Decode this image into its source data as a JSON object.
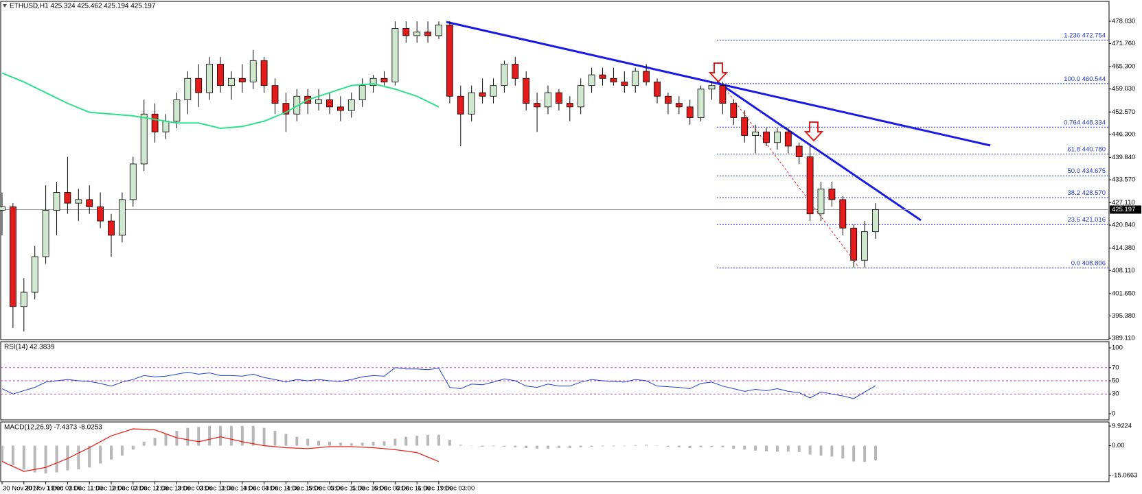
{
  "chart_data": {
    "type": "candlestick",
    "title": "ETHUSD,H1  425.324 425.462 425.194 425.197",
    "x_labels": [
      "30 Nov 2017",
      "30 Nov 19:00",
      "1 Dec 03:00",
      "1 Dec 11:00",
      "1 Dec 19:00",
      "2 Dec 03:00",
      "2 Dec 11:00",
      "2 Dec 19:00",
      "3 Dec 03:00",
      "3 Dec 11:00",
      "3 Dec 19:00",
      "4 Dec 03:00",
      "4 Dec 11:00",
      "4 Dec 19:00",
      "5 Dec 03:00",
      "5 Dec 11:00",
      "5 Dec 19:00",
      "6 Dec 03:00",
      "6 Dec 11:00",
      "6 Dec 19:00",
      "7 Dec 03:00"
    ],
    "open": [
      425,
      426,
      398,
      402,
      412,
      425,
      430,
      427,
      428,
      426,
      422,
      418,
      428,
      438,
      452,
      447,
      450,
      456,
      462,
      458,
      466,
      460,
      462,
      461,
      467,
      460,
      455,
      452,
      457,
      455,
      456,
      454,
      453,
      456,
      460,
      462,
      461,
      476,
      474,
      475,
      474,
      477,
      457,
      452,
      458,
      457,
      460,
      466,
      462,
      455,
      454,
      458,
      455,
      454,
      460,
      463,
      462,
      461,
      460,
      464,
      461,
      457,
      455,
      454,
      451,
      459,
      460,
      455,
      451,
      446,
      447,
      444,
      447,
      443,
      440,
      424,
      431,
      428,
      420,
      411,
      419
    ],
    "high": [
      430,
      427,
      406,
      415,
      432,
      433,
      440,
      431,
      432,
      430,
      424,
      430,
      440,
      456,
      455,
      452,
      458,
      464,
      466,
      468,
      468,
      464,
      466,
      470,
      468,
      462,
      458,
      459,
      459,
      459,
      458,
      457,
      458,
      462,
      463,
      464,
      478,
      478,
      478,
      478,
      478,
      478,
      460,
      460,
      462,
      462,
      467,
      468,
      464,
      458,
      460,
      459,
      457,
      462,
      465,
      465,
      465,
      464,
      465,
      466,
      462,
      458,
      457,
      456,
      460,
      461,
      461,
      456,
      453,
      449,
      448,
      448,
      448,
      444,
      443,
      433,
      433,
      429,
      421,
      422,
      427
    ],
    "low": [
      418,
      392,
      391,
      400,
      410,
      418,
      424,
      422,
      424,
      420,
      412,
      416,
      426,
      436,
      444,
      445,
      448,
      452,
      454,
      456,
      458,
      456,
      458,
      459,
      458,
      452,
      447,
      450,
      452,
      453,
      452,
      450,
      451,
      454,
      458,
      460,
      460,
      472,
      472,
      472,
      473,
      455,
      443,
      450,
      455,
      455,
      458,
      460,
      453,
      447,
      452,
      453,
      450,
      452,
      458,
      460,
      460,
      458,
      458,
      460,
      455,
      452,
      452,
      449,
      450,
      456,
      452,
      449,
      444,
      441,
      443,
      442,
      441,
      438,
      422,
      422,
      426,
      418,
      409,
      409,
      417
    ],
    "close": [
      426,
      398,
      402,
      412,
      425,
      430,
      427,
      428,
      426,
      422,
      418,
      428,
      438,
      452,
      447,
      450,
      456,
      462,
      458,
      466,
      460,
      462,
      461,
      467,
      460,
      455,
      452,
      457,
      455,
      456,
      454,
      453,
      456,
      460,
      462,
      461,
      476,
      474,
      475,
      474,
      477,
      457,
      452,
      458,
      457,
      460,
      466,
      462,
      455,
      454,
      458,
      455,
      454,
      460,
      463,
      462,
      461,
      460,
      464,
      461,
      457,
      455,
      454,
      451,
      459,
      460,
      455,
      451,
      446,
      447,
      444,
      447,
      443,
      440,
      424,
      431,
      428,
      420,
      411,
      419,
      425.197
    ],
    "up_color": "#cfe8cf",
    "down_color": "#e41b1b",
    "ma": {
      "color": "#2ee08a",
      "values": [
        463.5,
        461,
        458,
        455,
        452.5,
        452,
        451.5,
        450.5,
        449.5,
        449.5,
        448,
        448.5,
        450,
        452.5,
        456,
        458,
        460,
        460.5,
        459,
        457,
        454
      ]
    },
    "ylim": [
      388.72,
      483.61
    ],
    "yticks": [
      {
        "value": 478.03,
        "label": "478.030"
      },
      {
        "value": 471.76,
        "label": "471.760"
      },
      {
        "value": 465.3,
        "label": "465.300"
      },
      {
        "value": 459.03,
        "label": "459.030"
      },
      {
        "value": 452.57,
        "label": "452.570"
      },
      {
        "value": 446.3,
        "label": "446.300"
      },
      {
        "value": 439.84,
        "label": "439.840"
      },
      {
        "value": 433.57,
        "label": "433.570"
      },
      {
        "value": 427.11,
        "label": "427.110"
      },
      {
        "value": 420.84,
        "label": "420.840"
      },
      {
        "value": 414.38,
        "label": "414.380"
      },
      {
        "value": 408.11,
        "label": "408.110"
      },
      {
        "value": 401.65,
        "label": "401.650"
      },
      {
        "value": 395.38,
        "label": "395.380"
      },
      {
        "value": 389.11,
        "label": "389.110"
      }
    ],
    "last_price": 425.197,
    "fib_color": "#2236c8",
    "fib_levels": [
      {
        "level": "1.236",
        "price": {
          "value": 472.754,
          "label": "472.754"
        }
      },
      {
        "level": "100.0",
        "price": {
          "value": 460.544,
          "label": "460.544"
        }
      },
      {
        "level": "0.764",
        "price": {
          "value": 448.334,
          "label": "448.334"
        }
      },
      {
        "level": "61.8",
        "price": {
          "value": 440.78,
          "label": "440.780"
        }
      },
      {
        "level": "50.0",
        "price": {
          "value": 434.675,
          "label": "434.675"
        }
      },
      {
        "level": "38.2",
        "price": {
          "value": 428.57,
          "label": "428.570"
        }
      },
      {
        "level": "23.6",
        "price": {
          "value": 421.016,
          "label": "421.016"
        }
      },
      {
        "level": "0.0",
        "price": {
          "value": 408.806,
          "label": "408.806"
        }
      }
    ],
    "rsi": {
      "title": "RSI(14) 42.3839",
      "color": "#1f3fd0",
      "values": [
        38,
        30,
        35,
        40,
        48,
        50,
        52,
        50,
        49,
        46,
        42,
        48,
        52,
        58,
        56,
        57,
        60,
        63,
        60,
        62,
        58,
        58,
        57,
        60,
        55,
        52,
        48,
        52,
        50,
        52,
        50,
        49,
        52,
        56,
        58,
        57,
        70,
        68,
        68,
        67,
        69,
        40,
        38,
        45,
        44,
        48,
        53,
        50,
        42,
        40,
        45,
        42,
        42,
        48,
        52,
        50,
        49,
        48,
        52,
        50,
        42,
        41,
        40,
        38,
        46,
        48,
        42,
        38,
        34,
        37,
        35,
        38,
        34,
        32,
        24,
        33,
        30,
        27,
        23,
        33,
        42.3839
      ],
      "ylim": [
        -9.4,
        109.4
      ],
      "yticks": [
        0,
        30,
        50,
        70,
        100
      ],
      "levels": [
        30,
        50,
        70
      ],
      "level_color": "#c040c0"
    },
    "macd": {
      "title": "MACD(12,26,9) -7.4373 -8.0253",
      "hist_color": "#b8b8b8",
      "signal_color": "#e8231e",
      "histogram": [
        -8,
        -10,
        -12,
        -13.5,
        -14,
        -13.5,
        -12.5,
        -12,
        -11,
        -9,
        -7,
        -5,
        -2,
        2,
        4,
        6,
        7.5,
        9,
        9.5,
        10,
        10,
        10,
        10,
        10,
        9,
        7.5,
        6,
        4.5,
        3.5,
        2.5,
        2,
        1.5,
        1.2,
        1.5,
        2,
        2.2,
        3.5,
        4.5,
        5,
        5.5,
        5.5,
        3,
        0.5,
        0,
        -0.5,
        -0.3,
        -0.5,
        -0.8,
        -1.2,
        -1.5,
        -1.5,
        -1.2,
        -1.2,
        -0.8,
        -0.5,
        -0.3,
        -0.3,
        -0.2,
        0.3,
        0.5,
        0,
        -0.5,
        -0.8,
        -1.2,
        -0.8,
        -0.5,
        -0.8,
        -1.5,
        -2,
        -2.5,
        -2.8,
        -3,
        -3,
        -3.2,
        -4.5,
        -5,
        -5.5,
        -6.5,
        -8,
        -8.2,
        -7.4373
      ],
      "signal": [
        -8,
        -13,
        -11,
        -6.5,
        -1,
        5,
        8.5,
        8,
        4,
        2,
        4.5,
        2,
        0,
        -1,
        -1.5,
        -0.5,
        -0.5,
        -1,
        -2,
        -3.5,
        -8.0253
      ],
      "ylim": [
        -18.19,
        12.0
      ],
      "yticks": [
        9.9224,
        {
          "value": 0,
          "label": "0.00"
        },
        -15.0663
      ]
    }
  }
}
